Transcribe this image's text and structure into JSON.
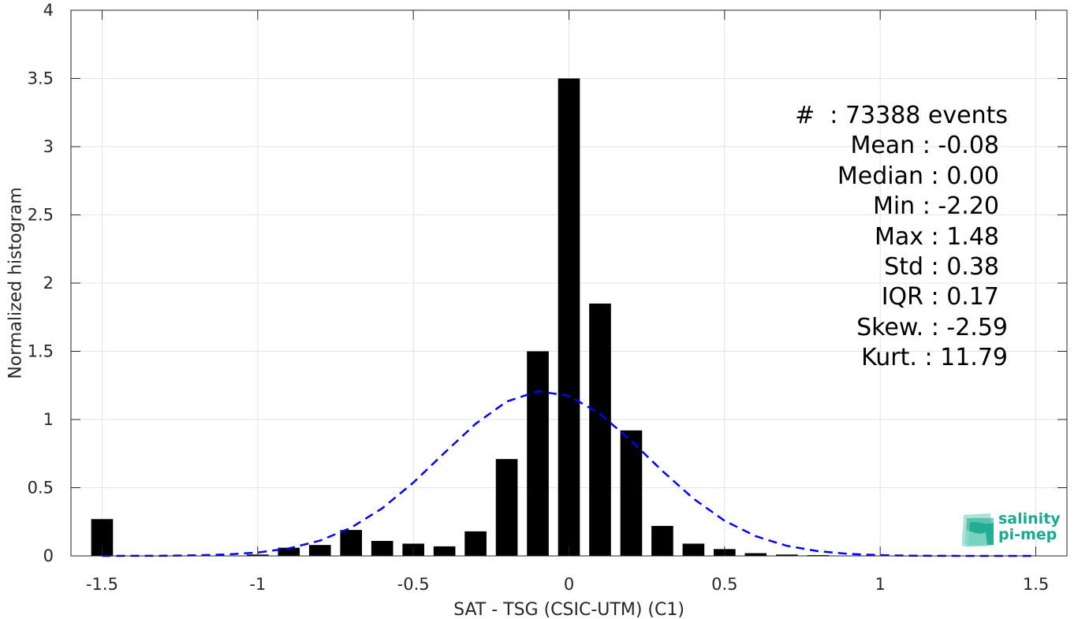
{
  "chart_data": {
    "type": "bar",
    "xlabel": "SAT - TSG (CSIC-UTM) (C1)",
    "ylabel": "Normalized histogram",
    "xlim": [
      -1.6,
      1.6
    ],
    "ylim": [
      0,
      4
    ],
    "xticks": [
      -1.5,
      -1,
      -0.5,
      0,
      0.5,
      1,
      1.5
    ],
    "xtick_labels": [
      "-1.5",
      "-1",
      "-0.5",
      "0",
      "0.5",
      "1",
      "1.5"
    ],
    "yticks": [
      0,
      0.5,
      1,
      1.5,
      2,
      2.5,
      3,
      3.5,
      4
    ],
    "ytick_labels": [
      "0",
      "0.5",
      "1",
      "1.5",
      "2",
      "2.5",
      "3",
      "3.5",
      "4"
    ],
    "grid": true,
    "bar_width": 0.07,
    "bar_color": "#000000",
    "bars": [
      {
        "x": -1.5,
        "y": 0.27
      },
      {
        "x": -1.4,
        "y": 0.0
      },
      {
        "x": -1.3,
        "y": 0.0
      },
      {
        "x": -1.2,
        "y": 0.0
      },
      {
        "x": -1.1,
        "y": 0.0
      },
      {
        "x": -1.0,
        "y": 0.01
      },
      {
        "x": -0.9,
        "y": 0.06
      },
      {
        "x": -0.8,
        "y": 0.08
      },
      {
        "x": -0.7,
        "y": 0.19
      },
      {
        "x": -0.6,
        "y": 0.11
      },
      {
        "x": -0.5,
        "y": 0.09
      },
      {
        "x": -0.4,
        "y": 0.07
      },
      {
        "x": -0.3,
        "y": 0.18
      },
      {
        "x": -0.2,
        "y": 0.71
      },
      {
        "x": -0.1,
        "y": 1.5
      },
      {
        "x": 0.0,
        "y": 3.5
      },
      {
        "x": 0.1,
        "y": 1.85
      },
      {
        "x": 0.2,
        "y": 0.92
      },
      {
        "x": 0.3,
        "y": 0.22
      },
      {
        "x": 0.4,
        "y": 0.09
      },
      {
        "x": 0.5,
        "y": 0.05
      },
      {
        "x": 0.6,
        "y": 0.02
      },
      {
        "x": 0.7,
        "y": 0.01
      },
      {
        "x": 0.8,
        "y": 0.005
      },
      {
        "x": 0.9,
        "y": 0.0
      }
    ],
    "fit_curve": {
      "style": "dashed",
      "color": "#0000ff",
      "mean": -0.08,
      "std": 0.33,
      "x_range": [
        -1.5,
        1.5
      ]
    },
    "annotations": [
      "#  : 73388 events",
      "Mean : -0.08",
      "Median : 0.00",
      "Min : -2.20",
      "Max : 1.48",
      "Std : 0.38",
      "IQR : 0.17",
      "Skew. : -2.59",
      "Kurt. : 11.79"
    ]
  },
  "logo": {
    "line1": "salinity",
    "line2": "pi-mep",
    "color": "#1aa890"
  }
}
